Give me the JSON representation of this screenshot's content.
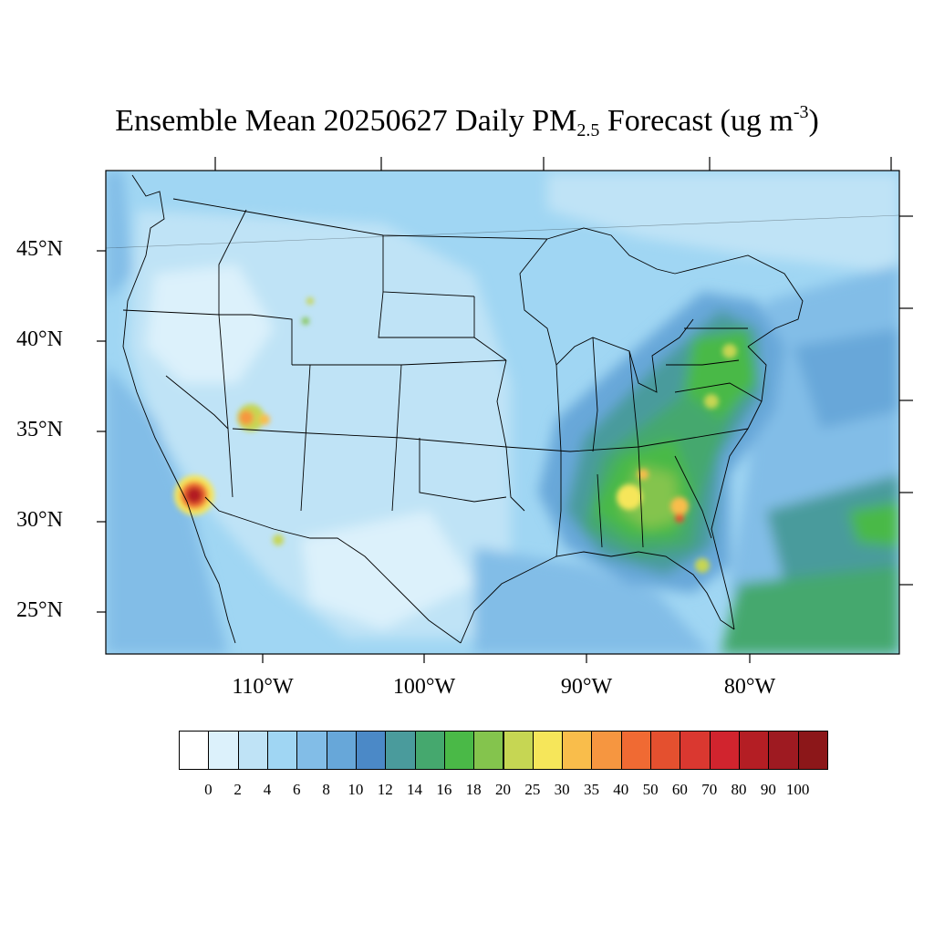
{
  "title": {
    "prefix": "Ensemble Mean 20250627 Daily PM",
    "subscript": "2.5",
    "middle": " Forecast (ug m",
    "superscript": "-3",
    "suffix": ")"
  },
  "map": {
    "projection": "Lambert Conformal",
    "region": "Contiguous United States",
    "latitude_labels": [
      "45°N",
      "40°N",
      "35°N",
      "30°N",
      "25°N"
    ],
    "longitude_labels": [
      "110°W",
      "100°W",
      "90°W",
      "80°W"
    ],
    "hotspots": [
      {
        "place": "Southern California / Baja border",
        "level": "90"
      },
      {
        "place": "Southwest Utah",
        "level": "40"
      },
      {
        "place": "Southern Georgia",
        "level": "40"
      },
      {
        "place": "Alabama / Georgia",
        "level": "30"
      },
      {
        "place": "Northern Arizona",
        "level": "25"
      },
      {
        "place": "Wyoming",
        "level": "30"
      }
    ]
  },
  "colorbar": {
    "labels": [
      "0",
      "2",
      "4",
      "6",
      "8",
      "10",
      "12",
      "14",
      "16",
      "18",
      "20",
      "25",
      "30",
      "35",
      "40",
      "50",
      "60",
      "70",
      "80",
      "90",
      "100"
    ],
    "colors": [
      "#ffffff",
      "#dcf1fb",
      "#bfe3f6",
      "#a0d6f3",
      "#82bde7",
      "#67a7d9",
      "#4b89c7",
      "#4a9b9c",
      "#45a86e",
      "#4ab947",
      "#84c44d",
      "#c6d653",
      "#f6e65a",
      "#f9bd4b",
      "#f69640",
      "#f06a33",
      "#e4502f",
      "#da3830",
      "#d1242e",
      "#b41e24",
      "#9e1a21",
      "#8c1719"
    ]
  }
}
